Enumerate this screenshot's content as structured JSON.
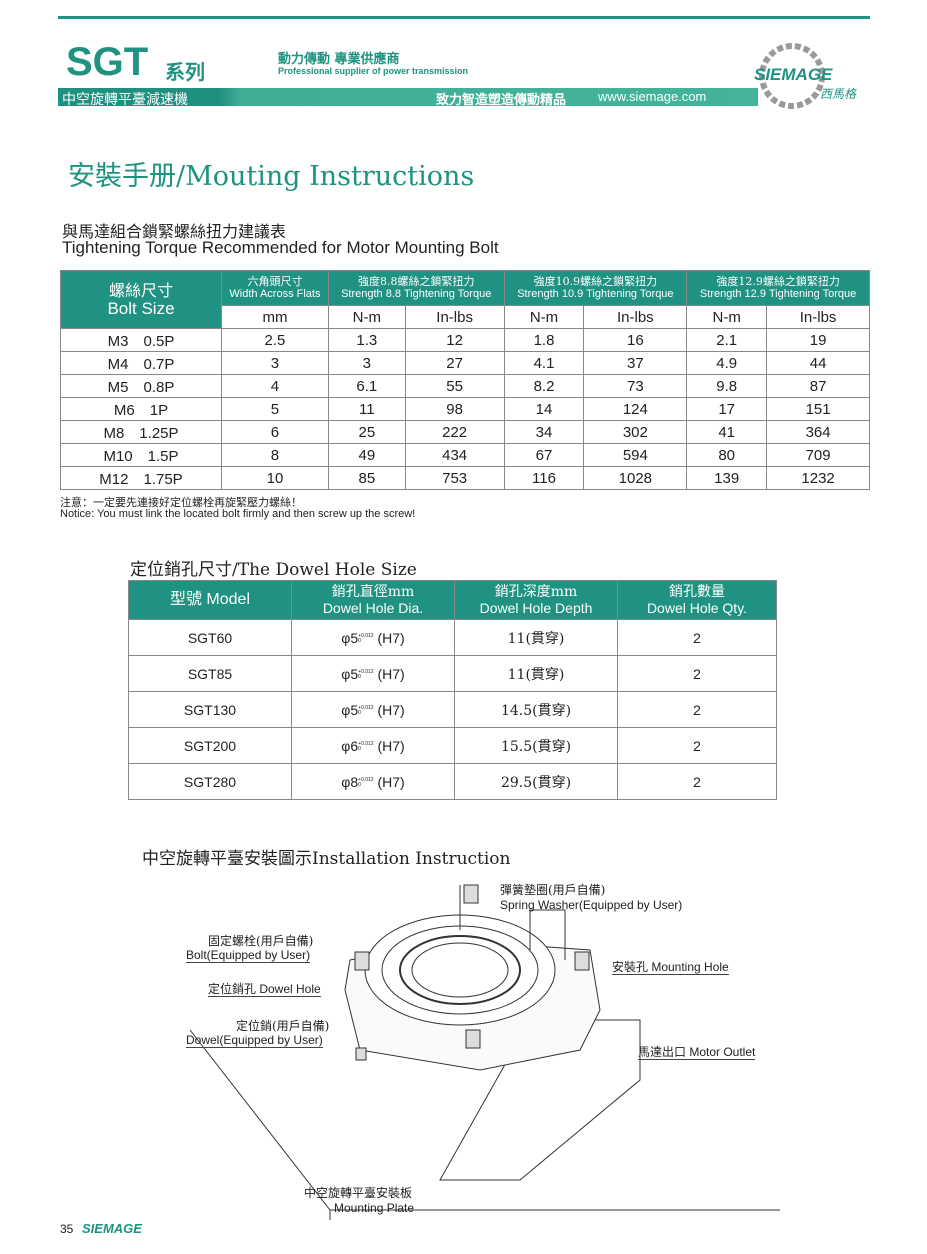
{
  "header": {
    "series": "SGT",
    "series_zh": "系列",
    "slogan_zh": "動力傳動 專業供應商",
    "slogan_en": "Professional supplier of power transmission",
    "product_zh": "中空旋轉平臺減速機",
    "motto": "致力智造塑造傳動精品",
    "website": "www.siemage.com",
    "logo_text": "SIEMAGE",
    "logo_zh": "西馬格",
    "accent": "#1f9281"
  },
  "page_title": "安裝手册/Mouting Instructions",
  "torque": {
    "title_zh": "與馬達組合鎖緊螺絲扭力建議表",
    "title_en": "Tightening Torque Recommended for Motor Mounting Bolt",
    "headers": {
      "bolt_zh": "螺絲尺寸",
      "bolt_en": "Bolt Size",
      "waf_zh": "六角頭尺寸",
      "waf_en": "Width Across Flats",
      "s88_zh": "強度8.8螺絲之鎖緊扭力",
      "s88_en": "Strength 8.8 Tightening Torque",
      "s109_zh": "強度10.9螺絲之鎖緊扭力",
      "s109_en": "Strength 10.9 Tightening Torque",
      "s129_zh": "強度12.9螺絲之鎖緊扭力",
      "s129_en": "Strength 12.9 Tightening Torque",
      "units": [
        "mm",
        "N-m",
        "In-lbs",
        "N-m",
        "In-lbs",
        "N-m",
        "In-lbs"
      ]
    },
    "rows": [
      [
        "M3　0.5P",
        "2.5",
        "1.3",
        "12",
        "1.8",
        "16",
        "2.1",
        "19"
      ],
      [
        "M4　0.7P",
        "3",
        "3",
        "27",
        "4.1",
        "37",
        "4.9",
        "44"
      ],
      [
        "M5　0.8P",
        "4",
        "6.1",
        "55",
        "8.2",
        "73",
        "9.8",
        "87"
      ],
      [
        "M6　1P",
        "5",
        "11",
        "98",
        "14",
        "124",
        "17",
        "151"
      ],
      [
        "M8　1.25P",
        "6",
        "25",
        "222",
        "34",
        "302",
        "41",
        "364"
      ],
      [
        "M10　1.5P",
        "8",
        "49",
        "434",
        "67",
        "594",
        "80",
        "709"
      ],
      [
        "M12　1.75P",
        "10",
        "85",
        "753",
        "116",
        "1028",
        "139",
        "1232"
      ]
    ],
    "notice_zh": "注意：一定要先連接好定位螺栓再旋緊壓力螺絲！",
    "notice_en": "Notice: You must link the located bolt firmly and then screw up the screw!"
  },
  "dowel": {
    "title": "定位銷孔尺寸/The Dowel Hole Size",
    "headers": {
      "model": "型號 Model",
      "dia_zh": "銷孔直徑mm",
      "dia_en": "Dowel Hole Dia.",
      "depth_zh": "銷孔深度mm",
      "depth_en": "Dowel Hole Depth",
      "qty_zh": "銷孔數量",
      "qty_en": "Dowel Hole Qty."
    },
    "tolerance_upper": "+0.012",
    "tolerance_lower": "0",
    "rows": [
      {
        "model": "SGT60",
        "dia": "φ5",
        "fit": "(H7)",
        "depth": "11(貫穿)",
        "qty": "2"
      },
      {
        "model": "SGT85",
        "dia": "φ5",
        "fit": "(H7)",
        "depth": "11(貫穿)",
        "qty": "2"
      },
      {
        "model": "SGT130",
        "dia": "φ5",
        "fit": "(H7)",
        "depth": "14.5(貫穿)",
        "qty": "2"
      },
      {
        "model": "SGT200",
        "dia": "φ6",
        "fit": "(H7)",
        "depth": "15.5(貫穿)",
        "qty": "2"
      },
      {
        "model": "SGT280",
        "dia": "φ8",
        "fit": "(H7)",
        "depth": "29.5(貫穿)",
        "qty": "2"
      }
    ]
  },
  "install": {
    "title": "中空旋轉平臺安裝圖示Installation Instruction",
    "labels": {
      "washer_zh": "彈簧墊圈(用戶自備)",
      "washer_en": "Spring Washer(Equipped by User)",
      "bolt_zh": "固定螺栓(用戶自備)",
      "bolt_en": "Bolt(Equipped by User)",
      "dowel_hole": "定位銷孔 Dowel Hole",
      "mounting_hole": "安裝孔 Mounting Hole",
      "dowel_zh": "定位銷(用戶自備)",
      "dowel_en": "Dowel(Equipped by User)",
      "motor_outlet": "馬達出口 Motor Outlet",
      "plate_zh": "中空旋轉平臺安裝板",
      "plate_en": "Mounting Plate"
    }
  },
  "footer": {
    "page": "35",
    "brand": "SIEMAGE"
  }
}
